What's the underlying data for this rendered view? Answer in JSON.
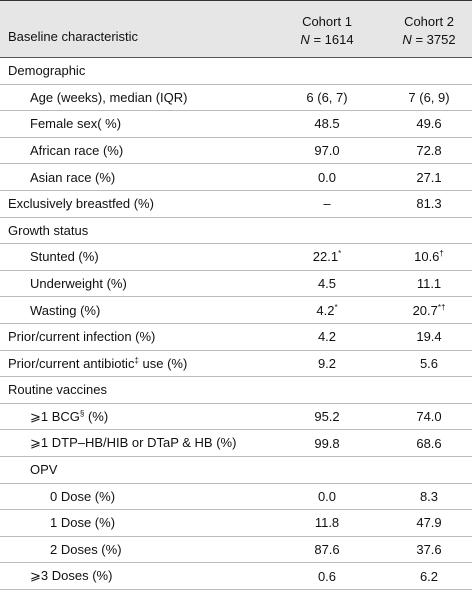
{
  "header": {
    "label": "Baseline characteristic",
    "columns": [
      {
        "title": "Cohort 1",
        "n_symbol": "N",
        "n_value": "= 1614"
      },
      {
        "title": "Cohort 2",
        "n_symbol": "N",
        "n_value": "= 3752"
      }
    ]
  },
  "table": {
    "rows": [
      {
        "label": "Demographic",
        "level": 0,
        "cells": []
      },
      {
        "label": "Age (weeks), median (IQR)",
        "level": 1,
        "cells": [
          "6 (6, 7)",
          "7 (6, 9)"
        ]
      },
      {
        "label": "Female sex( %)",
        "level": 1,
        "cells": [
          "48.5",
          "49.6"
        ]
      },
      {
        "label": "African race (%)",
        "level": 1,
        "cells": [
          "97.0",
          "72.8"
        ]
      },
      {
        "label": "Asian race (%)",
        "level": 1,
        "cells": [
          "0.0",
          "27.1"
        ]
      },
      {
        "label": "Exclusively breastfed (%)",
        "level": 0,
        "cells": [
          "–",
          "81.3"
        ]
      },
      {
        "label": "Growth status",
        "level": 0,
        "cells": []
      },
      {
        "label": "Stunted (%)",
        "level": 1,
        "cells": [
          {
            "text": "22.1",
            "sup": "*"
          },
          {
            "text": "10.6",
            "sup": "†"
          }
        ]
      },
      {
        "label": "Underweight (%)",
        "level": 1,
        "cells": [
          "4.5",
          "11.1"
        ]
      },
      {
        "label": "Wasting (%)",
        "level": 1,
        "cells": [
          {
            "text": "4.2",
            "sup": "*"
          },
          {
            "text": "20.7",
            "sup": "*†"
          }
        ]
      },
      {
        "label": "Prior/current infection (%)",
        "level": 0,
        "cells": [
          "4.2",
          "19.4"
        ]
      },
      {
        "label": {
          "text": "Prior/current antibiotic",
          "sup": "‡",
          "after": " use (%)"
        },
        "level": 0,
        "cells": [
          "9.2",
          "5.6"
        ]
      },
      {
        "label": "Routine vaccines",
        "level": 0,
        "cells": []
      },
      {
        "label": {
          "text": "⩾1 BCG",
          "sup": "§",
          "after": " (%)"
        },
        "level": 1,
        "cells": [
          "95.2",
          "74.0"
        ]
      },
      {
        "label": "⩾1 DTP–HB/HIB or DTaP & HB (%)",
        "level": 1,
        "cells": [
          "99.8",
          "68.6"
        ]
      },
      {
        "label": "OPV",
        "level": 1,
        "cells": []
      },
      {
        "label": "0 Dose (%)",
        "level": 2,
        "cells": [
          "0.0",
          "8.3"
        ]
      },
      {
        "label": "1 Dose (%)",
        "level": 2,
        "cells": [
          "11.8",
          "47.9"
        ]
      },
      {
        "label": "2 Doses (%)",
        "level": 2,
        "cells": [
          "87.6",
          "37.6"
        ]
      },
      {
        "label": "⩾3 Doses (%)",
        "level": 1,
        "cells": [
          "0.6",
          "6.2"
        ]
      }
    ]
  }
}
